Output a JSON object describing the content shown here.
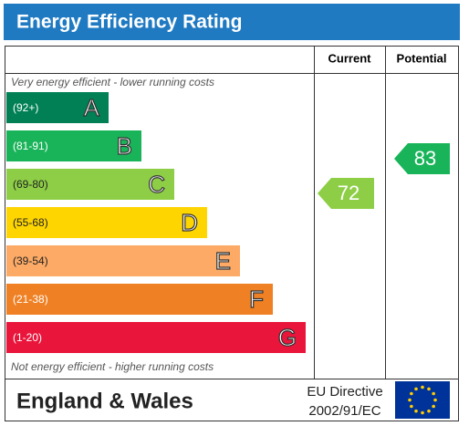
{
  "header": {
    "title": "Energy Efficiency Rating"
  },
  "columns": {
    "current": "Current",
    "potential": "Potential"
  },
  "top_note": "Very energy efficient - lower running costs",
  "bottom_note": "Not energy efficient - higher running costs",
  "bands": [
    {
      "range": "(92+)",
      "letter": "A",
      "color": "#008054"
    },
    {
      "range": "(81-91)",
      "letter": "B",
      "color": "#19b459"
    },
    {
      "range": "(69-80)",
      "letter": "C",
      "color": "#8dce46"
    },
    {
      "range": "(55-68)",
      "letter": "D",
      "color": "#ffd500"
    },
    {
      "range": "(39-54)",
      "letter": "E",
      "color": "#fcaa65"
    },
    {
      "range": "(21-38)",
      "letter": "F",
      "color": "#ef8023"
    },
    {
      "range": "(1-20)",
      "letter": "G",
      "color": "#e9153b"
    }
  ],
  "current": {
    "value": 72,
    "color": "#8dce46"
  },
  "potential": {
    "value": 83,
    "color": "#19b459"
  },
  "footer": {
    "region": "England & Wales",
    "directive_line1": "EU Directive",
    "directive_line2": "2002/91/EC"
  }
}
